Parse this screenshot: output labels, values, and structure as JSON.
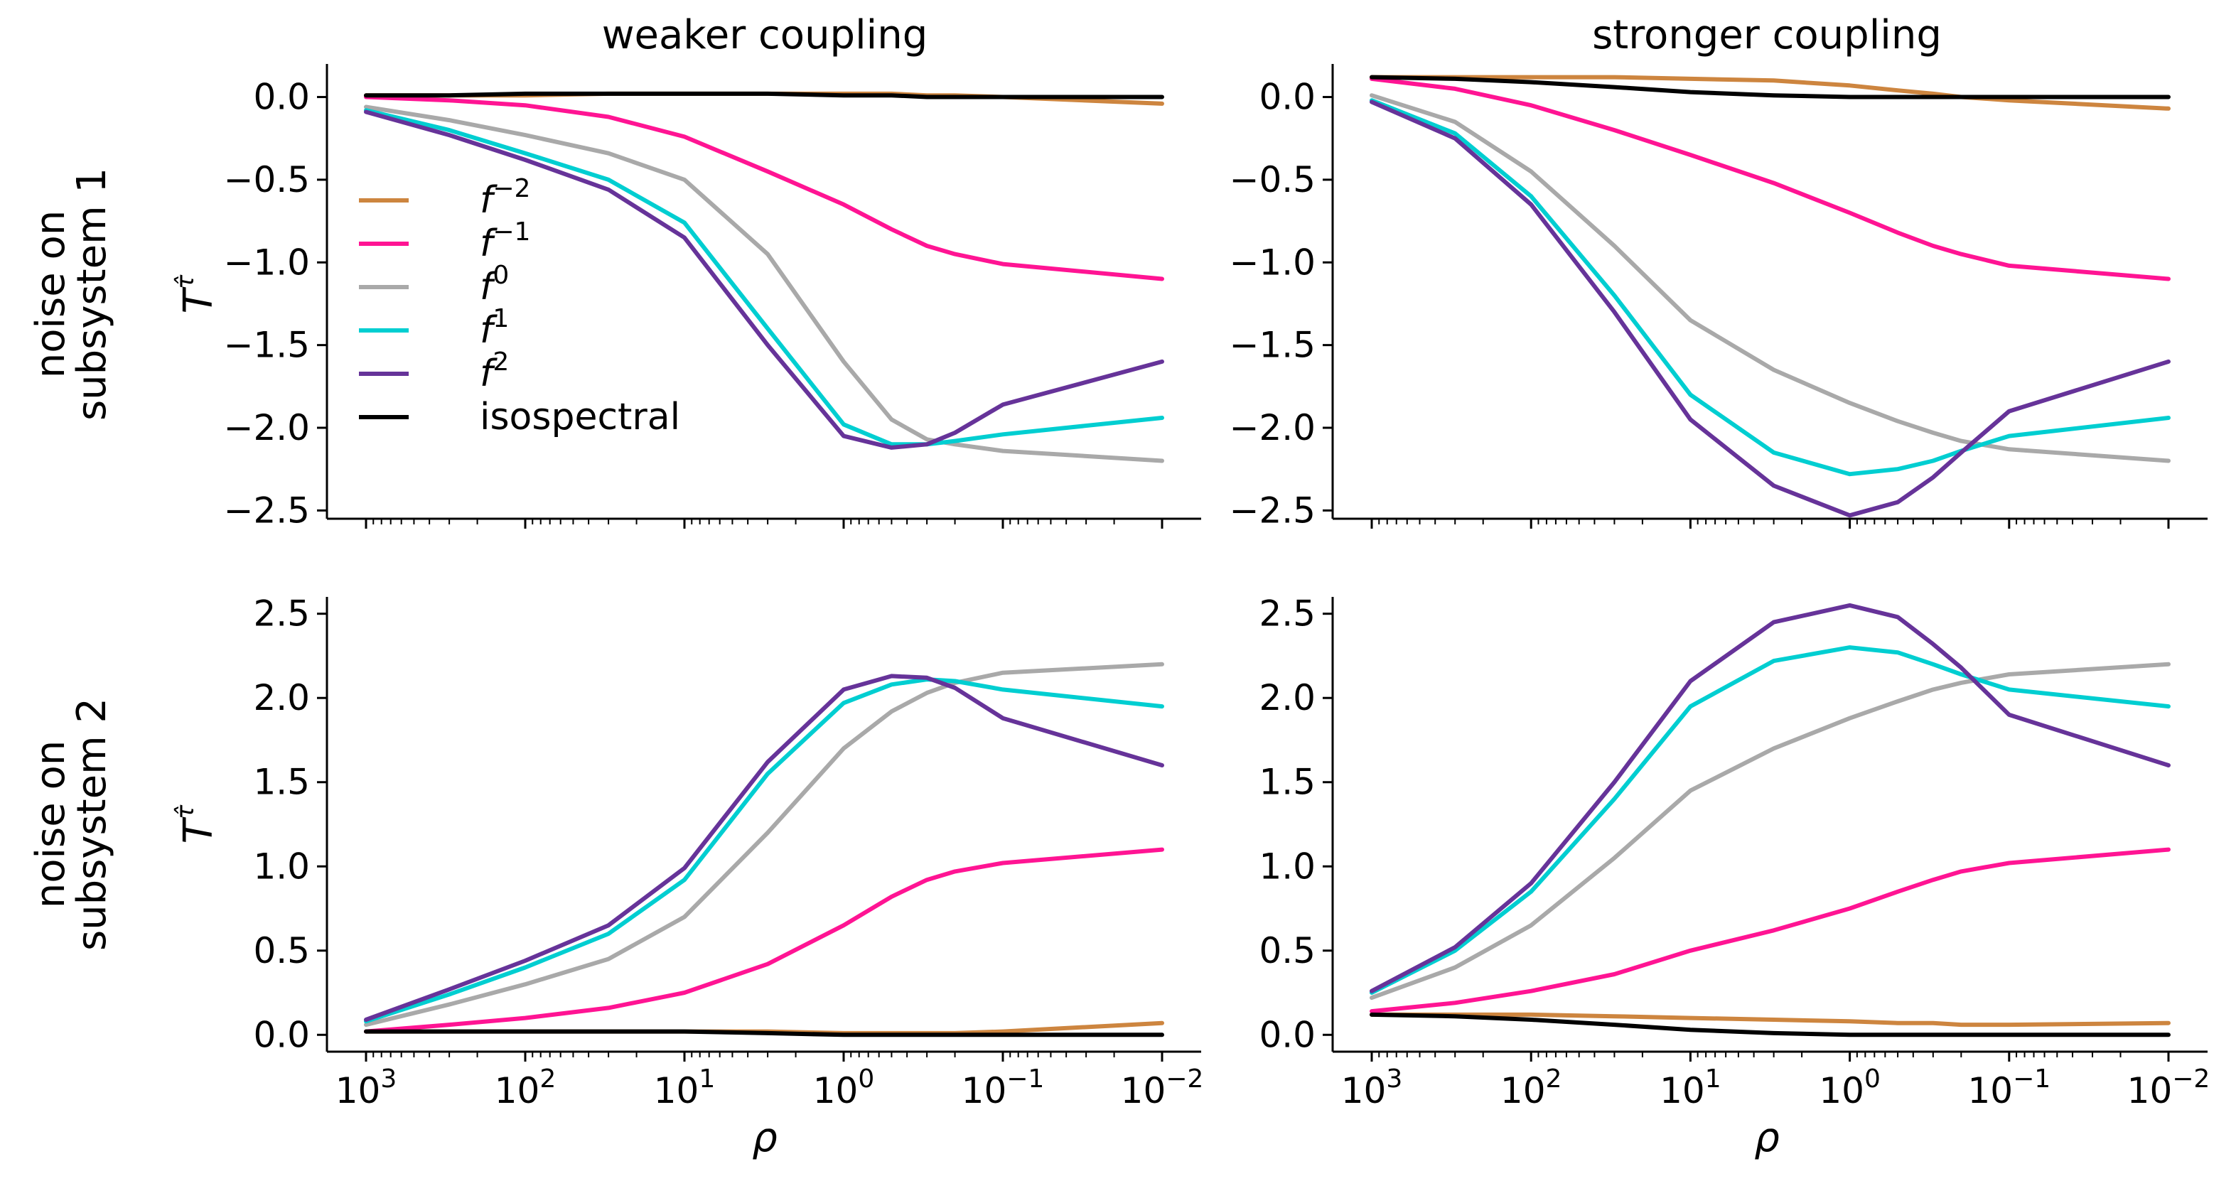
{
  "figure": {
    "col_titles": [
      "weaker coupling",
      "stronger coupling"
    ],
    "row_labels": [
      [
        "noise on",
        "subsystem 1"
      ],
      [
        "noise on",
        "subsystem 2"
      ]
    ],
    "ylabel": "T",
    "ylabel_sup": "τ̂",
    "xlabel": "ρ",
    "x_tick_labels": [
      {
        "base": "10",
        "exp": "3"
      },
      {
        "base": "10",
        "exp": "2"
      },
      {
        "base": "10",
        "exp": "1"
      },
      {
        "base": "10",
        "exp": "0"
      },
      {
        "base": "10",
        "exp": "−1"
      },
      {
        "base": "10",
        "exp": "−2"
      }
    ],
    "y_tick_labels_top": [
      "0.0",
      "−0.5",
      "−1.0",
      "−1.5",
      "−2.0",
      "−2.5"
    ],
    "y_tick_labels_bottom": [
      "0.0",
      "0.5",
      "1.0",
      "1.5",
      "2.0",
      "2.5"
    ],
    "legend": [
      {
        "key": "fm2",
        "base": "f",
        "exp": "−2",
        "color": "#CD853F"
      },
      {
        "key": "fm1",
        "base": "f",
        "exp": "−1",
        "color": "#FF1493"
      },
      {
        "key": "f0",
        "base": "f",
        "exp": "0",
        "color": "#A9A9A9"
      },
      {
        "key": "f1",
        "base": "f",
        "exp": "1",
        "color": "#00CED1"
      },
      {
        "key": "f2",
        "base": "f",
        "exp": "2",
        "color": "#663399"
      },
      {
        "key": "iso",
        "base": "isospectral",
        "exp": "",
        "color": "#000000"
      }
    ]
  },
  "chart_data": [
    {
      "type": "line",
      "panel": "top-left",
      "title": "weaker coupling",
      "xscale": "log-reversed",
      "xlim": [
        1000,
        0.01
      ],
      "ylim": [
        -2.55,
        0.2
      ],
      "xlabel": "",
      "ylabel": "T^τ̂",
      "x": [
        1000,
        300,
        100,
        30,
        10,
        3,
        1,
        0.5,
        0.3,
        0.2,
        0.1,
        0.01
      ],
      "series": [
        {
          "key": "fm2",
          "values": [
            0.01,
            0.01,
            0.01,
            0.02,
            0.02,
            0.02,
            0.02,
            0.02,
            0.01,
            0.01,
            0.0,
            -0.04
          ]
        },
        {
          "key": "fm1",
          "values": [
            0.0,
            -0.02,
            -0.05,
            -0.12,
            -0.24,
            -0.45,
            -0.65,
            -0.8,
            -0.9,
            -0.95,
            -1.01,
            -1.1
          ]
        },
        {
          "key": "f0",
          "values": [
            -0.06,
            -0.14,
            -0.23,
            -0.34,
            -0.5,
            -0.95,
            -1.6,
            -1.95,
            -2.07,
            -2.1,
            -2.14,
            -2.2
          ]
        },
        {
          "key": "f1",
          "values": [
            -0.08,
            -0.2,
            -0.34,
            -0.5,
            -0.76,
            -1.4,
            -1.98,
            -2.1,
            -2.1,
            -2.08,
            -2.04,
            -1.94
          ]
        },
        {
          "key": "f2",
          "values": [
            -0.09,
            -0.23,
            -0.38,
            -0.56,
            -0.85,
            -1.5,
            -2.05,
            -2.12,
            -2.1,
            -2.03,
            -1.86,
            -1.6
          ]
        },
        {
          "key": "iso",
          "values": [
            0.01,
            0.01,
            0.02,
            0.02,
            0.02,
            0.02,
            0.01,
            0.01,
            0.0,
            0.0,
            0.0,
            0.0
          ]
        }
      ]
    },
    {
      "type": "line",
      "panel": "top-right",
      "title": "stronger coupling",
      "xscale": "log-reversed",
      "xlim": [
        1000,
        0.01
      ],
      "ylim": [
        -2.55,
        0.2
      ],
      "xlabel": "",
      "ylabel": "",
      "x": [
        1000,
        300,
        100,
        30,
        10,
        3,
        1,
        0.5,
        0.3,
        0.2,
        0.1,
        0.01
      ],
      "series": [
        {
          "key": "fm2",
          "values": [
            0.12,
            0.12,
            0.12,
            0.12,
            0.11,
            0.1,
            0.07,
            0.04,
            0.02,
            0.0,
            -0.02,
            -0.07
          ]
        },
        {
          "key": "fm1",
          "values": [
            0.11,
            0.05,
            -0.05,
            -0.2,
            -0.35,
            -0.52,
            -0.7,
            -0.82,
            -0.9,
            -0.95,
            -1.02,
            -1.1
          ]
        },
        {
          "key": "f0",
          "values": [
            0.01,
            -0.15,
            -0.45,
            -0.9,
            -1.35,
            -1.65,
            -1.85,
            -1.96,
            -2.03,
            -2.08,
            -2.13,
            -2.2
          ]
        },
        {
          "key": "f1",
          "values": [
            -0.02,
            -0.22,
            -0.6,
            -1.2,
            -1.8,
            -2.15,
            -2.28,
            -2.25,
            -2.2,
            -2.14,
            -2.05,
            -1.94
          ]
        },
        {
          "key": "f2",
          "values": [
            -0.03,
            -0.25,
            -0.65,
            -1.3,
            -1.95,
            -2.35,
            -2.53,
            -2.45,
            -2.3,
            -2.15,
            -1.9,
            -1.6
          ]
        },
        {
          "key": "iso",
          "values": [
            0.12,
            0.11,
            0.09,
            0.06,
            0.03,
            0.01,
            0.0,
            0.0,
            0.0,
            0.0,
            0.0,
            0.0
          ]
        }
      ]
    },
    {
      "type": "line",
      "panel": "bottom-left",
      "title": "",
      "xscale": "log-reversed",
      "xlim": [
        1000,
        0.01
      ],
      "ylim": [
        -0.1,
        2.6
      ],
      "xlabel": "ρ",
      "ylabel": "T^τ̂",
      "x": [
        1000,
        300,
        100,
        30,
        10,
        3,
        1,
        0.5,
        0.3,
        0.2,
        0.1,
        0.01
      ],
      "series": [
        {
          "key": "fm2",
          "values": [
            0.02,
            0.02,
            0.02,
            0.02,
            0.02,
            0.02,
            0.01,
            0.01,
            0.01,
            0.01,
            0.02,
            0.07
          ]
        },
        {
          "key": "fm1",
          "values": [
            0.02,
            0.06,
            0.1,
            0.16,
            0.25,
            0.42,
            0.65,
            0.82,
            0.92,
            0.97,
            1.02,
            1.1
          ]
        },
        {
          "key": "f0",
          "values": [
            0.06,
            0.18,
            0.3,
            0.45,
            0.7,
            1.2,
            1.7,
            1.92,
            2.03,
            2.09,
            2.15,
            2.2
          ]
        },
        {
          "key": "f1",
          "values": [
            0.08,
            0.24,
            0.4,
            0.6,
            0.92,
            1.55,
            1.97,
            2.08,
            2.11,
            2.1,
            2.05,
            1.95
          ]
        },
        {
          "key": "f2",
          "values": [
            0.09,
            0.27,
            0.44,
            0.65,
            0.99,
            1.62,
            2.05,
            2.13,
            2.12,
            2.06,
            1.88,
            1.6
          ]
        },
        {
          "key": "iso",
          "values": [
            0.02,
            0.02,
            0.02,
            0.02,
            0.02,
            0.01,
            0.0,
            0.0,
            0.0,
            0.0,
            0.0,
            0.0
          ]
        }
      ]
    },
    {
      "type": "line",
      "panel": "bottom-right",
      "title": "",
      "xscale": "log-reversed",
      "xlim": [
        1000,
        0.01
      ],
      "ylim": [
        -0.1,
        2.6
      ],
      "xlabel": "ρ",
      "ylabel": "",
      "x": [
        1000,
        300,
        100,
        30,
        10,
        3,
        1,
        0.5,
        0.3,
        0.2,
        0.1,
        0.01
      ],
      "series": [
        {
          "key": "fm2",
          "values": [
            0.12,
            0.12,
            0.12,
            0.11,
            0.1,
            0.09,
            0.08,
            0.07,
            0.07,
            0.06,
            0.06,
            0.07
          ]
        },
        {
          "key": "fm1",
          "values": [
            0.14,
            0.19,
            0.26,
            0.36,
            0.5,
            0.62,
            0.75,
            0.85,
            0.92,
            0.97,
            1.02,
            1.1
          ]
        },
        {
          "key": "f0",
          "values": [
            0.22,
            0.4,
            0.65,
            1.05,
            1.45,
            1.7,
            1.88,
            1.98,
            2.05,
            2.09,
            2.14,
            2.2
          ]
        },
        {
          "key": "f1",
          "values": [
            0.25,
            0.5,
            0.85,
            1.4,
            1.95,
            2.22,
            2.3,
            2.27,
            2.2,
            2.14,
            2.05,
            1.95
          ]
        },
        {
          "key": "f2",
          "values": [
            0.26,
            0.52,
            0.9,
            1.5,
            2.1,
            2.45,
            2.55,
            2.48,
            2.32,
            2.18,
            1.9,
            1.6
          ]
        },
        {
          "key": "iso",
          "values": [
            0.12,
            0.11,
            0.09,
            0.06,
            0.03,
            0.01,
            0.0,
            0.0,
            0.0,
            0.0,
            0.0,
            0.0
          ]
        }
      ]
    }
  ]
}
